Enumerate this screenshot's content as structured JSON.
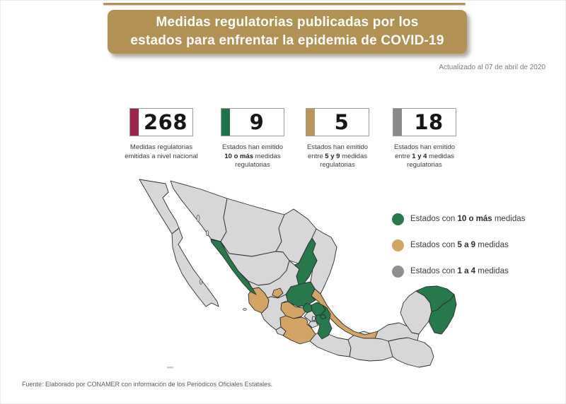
{
  "header": {
    "title_line1": "Medidas regulatorias publicadas por los",
    "title_line2": "estados para enfrentar la epidemia de COVID-19",
    "bg_color": "#b29155",
    "text_color": "#ffffff"
  },
  "updated_text": "Actualizado al 07 de abril de 2020",
  "stats": [
    {
      "value": "268",
      "bar_color": "#9c2448",
      "caption_lines": [
        [
          {
            "t": "Medidas regulatorias"
          }
        ],
        [
          {
            "t": "emitidas a nivel nacional"
          }
        ]
      ]
    },
    {
      "value": "9",
      "bar_color": "#1e7448",
      "caption_lines": [
        [
          {
            "t": "Estados han emitido"
          }
        ],
        [
          {
            "t": "10 o más",
            "b": true
          },
          {
            "t": " medidas"
          }
        ],
        [
          {
            "t": "regulatorias"
          }
        ]
      ]
    },
    {
      "value": "5",
      "bar_color": "#bc955c",
      "caption_lines": [
        [
          {
            "t": "Estados han emitido"
          }
        ],
        [
          {
            "t": "entre "
          },
          {
            "t": "5 y 9",
            "b": true
          },
          {
            "t": " medidas"
          }
        ],
        [
          {
            "t": "regulatorias"
          }
        ]
      ]
    },
    {
      "value": "18",
      "bar_color": "#8a8a8a",
      "caption_lines": [
        [
          {
            "t": "Estados han emitido"
          }
        ],
        [
          {
            "t": "entre "
          },
          {
            "t": "1 y 4",
            "b": true
          },
          {
            "t": " medidas"
          }
        ],
        [
          {
            "t": "regulatorias"
          }
        ]
      ]
    }
  ],
  "legend": [
    {
      "color": "#27784a",
      "prefix": "Estados con ",
      "bold": "10 o más",
      "suffix": " medidas"
    },
    {
      "color": "#d2a466",
      "prefix": "Estados con ",
      "bold": "5 a 9",
      "suffix": " medidas"
    },
    {
      "color": "#8f8f8f",
      "prefix": "Estados con ",
      "bold": "1 a 4",
      "suffix": " medidas"
    }
  ],
  "map_style": {
    "category_colors": {
      "10+": "#27784a",
      "5-9": "#d2a466",
      "1-4": "#d7d7d9"
    },
    "border_color": "#2d2d2d"
  },
  "chart_data": {
    "type": "choropleth_map",
    "title": "Medidas regulatorias publicadas por los estados para enfrentar la epidemia de COVID-19",
    "updated": "Actualizado al 07 de abril de 2020",
    "summary": [
      {
        "value": 268,
        "label": "Medidas regulatorias emitidas a nivel nacional"
      },
      {
        "value": 9,
        "label": "Estados han emitido 10 o más medidas regulatorias"
      },
      {
        "value": 5,
        "label": "Estados han emitido entre 5 y 9 medidas regulatorias"
      },
      {
        "value": 18,
        "label": "Estados han emitido entre 1 y 4 medidas regulatorias"
      }
    ],
    "legend": [
      "Estados con 10 o más medidas",
      "Estados con 5 a 9 medidas",
      "Estados con 1 a 4 medidas"
    ],
    "states": [
      {
        "name": "Baja California",
        "category": "1-4"
      },
      {
        "name": "Baja California Sur",
        "category": "1-4"
      },
      {
        "name": "Sonora",
        "category": "1-4"
      },
      {
        "name": "Chihuahua",
        "category": "1-4"
      },
      {
        "name": "Coahuila",
        "category": "1-4"
      },
      {
        "name": "Tamaulipas",
        "category": "1-4"
      },
      {
        "name": "Durango",
        "category": "1-4"
      },
      {
        "name": "Zacatecas",
        "category": "1-4"
      },
      {
        "name": "Jalisco",
        "category": "1-4"
      },
      {
        "name": "Guerrero",
        "category": "1-4"
      },
      {
        "name": "Oaxaca",
        "category": "1-4"
      },
      {
        "name": "Chiapas",
        "category": "1-4"
      },
      {
        "name": "Tabasco",
        "category": "1-4"
      },
      {
        "name": "Campeche",
        "category": "1-4"
      },
      {
        "name": "Veracruz",
        "category": "5-9"
      },
      {
        "name": "Nayarit",
        "category": "5-9"
      },
      {
        "name": "Aguascalientes",
        "category": "5-9"
      },
      {
        "name": "Guanajuato",
        "category": "5-9"
      },
      {
        "name": "Michoacán",
        "category": "5-9"
      },
      {
        "name": "Colima",
        "category": "1-4"
      },
      {
        "name": "Sinaloa",
        "category": "10+"
      },
      {
        "name": "Nuevo León",
        "category": "10+"
      },
      {
        "name": "San Luis Potosí",
        "category": "10+"
      },
      {
        "name": "Querétaro",
        "category": "10+"
      },
      {
        "name": "Hidalgo",
        "category": "10+"
      },
      {
        "name": "Puebla",
        "category": "10+"
      },
      {
        "name": "Yucatán",
        "category": "10+"
      },
      {
        "name": "Quintana Roo",
        "category": "10+"
      },
      {
        "name": "Tlaxcala",
        "category": "10+"
      },
      {
        "name": "Estado de México",
        "category": "1-4"
      },
      {
        "name": "Ciudad de México",
        "category": "1-4"
      },
      {
        "name": "Morelos",
        "category": "1-4"
      }
    ]
  },
  "footer_text": "Fuente: Elaborado por CONAMER con información de los Periódicos Oficiales Estatales."
}
